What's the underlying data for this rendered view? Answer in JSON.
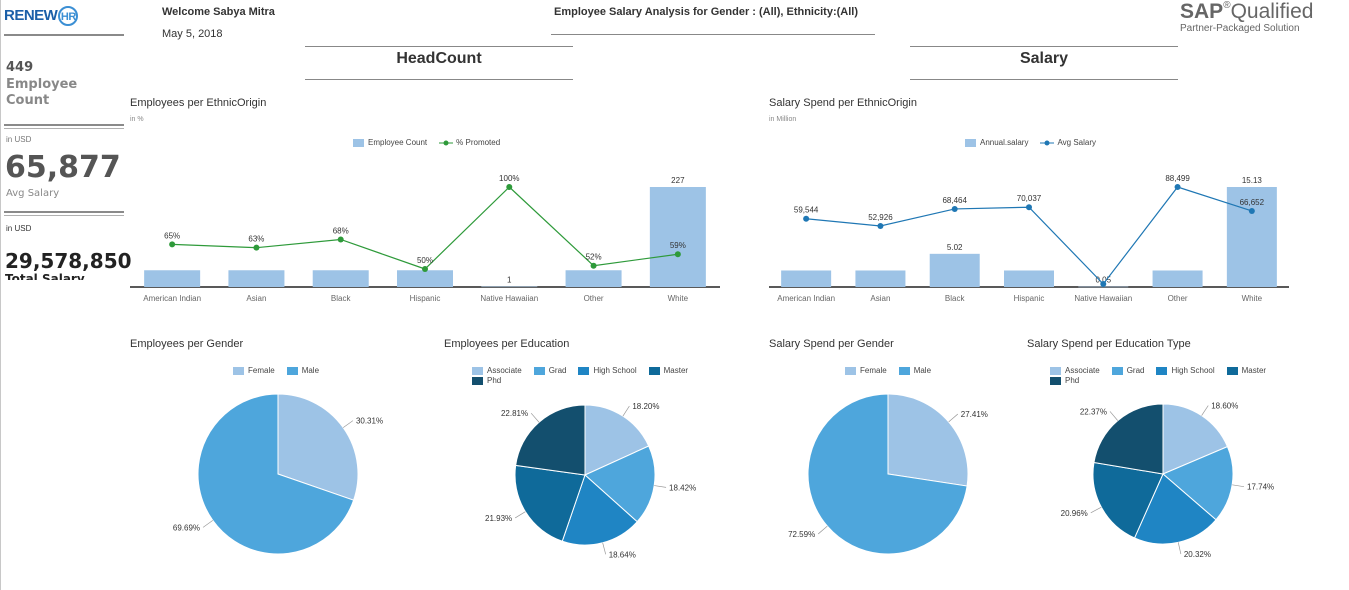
{
  "header": {
    "welcome": "Welcome Sabya Mitra",
    "date": "May 5, 2018",
    "analysis_title": "Employee Salary Analysis for Gender : (All), Ethnicity:(All)",
    "logo_text": "RENEW",
    "logo_badge": "HR",
    "sap_brand": "SAP",
    "sap_reg": "®",
    "sap_qualified": "Qualified",
    "sap_sub": "Partner-Packaged Solution"
  },
  "sidebar": {
    "headcount_value": "449",
    "headcount_label1": "Employee",
    "headcount_label2": "Count",
    "avg_unit": "in USD",
    "avg_value": "65,877",
    "avg_label": "Avg Salary",
    "total_unit": "in USD",
    "total_value": "29,578,850",
    "total_label": "Total Salary"
  },
  "sections": {
    "headcount": "HeadCount",
    "salary": "Salary"
  },
  "colors": {
    "bar": "#9dc3e6",
    "promoted_line": "#2e9a3a",
    "avg_line": "#1f77b4",
    "pie": [
      "#9dc3e6",
      "#4ea6dc",
      "#1f85c4",
      "#0f6a9a",
      "#134f6e"
    ]
  },
  "chart_data": [
    {
      "type": "bar",
      "title": "Employees per EthnicOrigin",
      "subtitle": "in %",
      "categories": [
        "American Indian",
        "Asian",
        "Black",
        "Hispanic",
        "Native Hawaiian",
        "Other",
        "White"
      ],
      "series": [
        {
          "name": "Employee Count",
          "values": [
            38,
            38,
            38,
            38,
            1,
            38,
            227
          ],
          "labels": [
            "",
            "",
            "",
            "",
            "1",
            "",
            "227"
          ]
        },
        {
          "name": "% Promoted",
          "values": [
            65,
            63,
            68,
            50,
            100,
            52,
            59
          ],
          "labels": [
            "65%",
            "63%",
            "68%",
            "50%",
            "100%",
            "52%",
            "59%"
          ]
        }
      ],
      "legend_position": "top"
    },
    {
      "type": "bar",
      "title": "Salary Spend per EthnicOrigin",
      "subtitle": "in Million",
      "categories": [
        "American Indian",
        "Asian",
        "Black",
        "Hispanic",
        "Native Hawaiian",
        "Other",
        "White"
      ],
      "series": [
        {
          "name": "Annual.salary",
          "values": [
            2.5,
            2.5,
            5.02,
            2.5,
            0.05,
            2.5,
            15.13
          ],
          "labels": [
            "",
            "",
            "5.02",
            "",
            "0.05",
            "",
            "15.13"
          ]
        },
        {
          "name": "Avg Salary",
          "values": [
            59544,
            52926,
            68464,
            70037,
            0,
            88499,
            66652
          ],
          "labels": [
            "59,544",
            "52,926",
            "68,464",
            "70,037",
            "",
            "88,499",
            "66,652"
          ]
        }
      ],
      "legend_position": "top"
    },
    {
      "type": "pie",
      "title": "Employees per Gender",
      "labels": [
        "Female",
        "Male"
      ],
      "values": [
        30.31,
        69.69
      ],
      "value_labels": [
        "30.31%",
        "69.69%"
      ]
    },
    {
      "type": "pie",
      "title": "Employees per Education",
      "labels": [
        "Associate",
        "Grad",
        "High School",
        "Master",
        "Phd"
      ],
      "values": [
        18.2,
        18.42,
        18.64,
        21.93,
        22.81
      ],
      "value_labels": [
        "18.20%",
        "18.42%",
        "18.64%",
        "21.93%",
        "22.81%"
      ]
    },
    {
      "type": "pie",
      "title": "Salary Spend per Gender",
      "labels": [
        "Female",
        "Male"
      ],
      "values": [
        27.41,
        72.59
      ],
      "value_labels": [
        "27.41%",
        "72.59%"
      ]
    },
    {
      "type": "pie",
      "title": "Salary Spend per Education Type",
      "labels": [
        "Associate",
        "Grad",
        "High School",
        "Master",
        "Phd"
      ],
      "values": [
        18.6,
        17.74,
        20.32,
        20.96,
        22.37
      ],
      "value_labels": [
        "18.60%",
        "17.74%",
        "20.32%",
        "20.96%",
        "22.37%"
      ]
    }
  ]
}
